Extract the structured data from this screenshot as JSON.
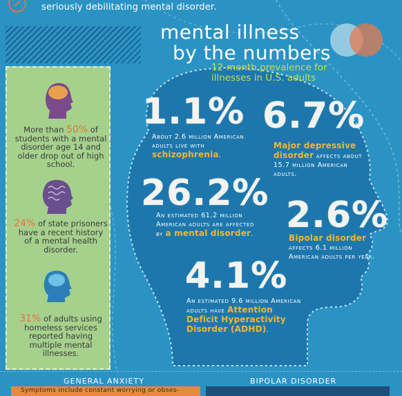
{
  "header": {
    "intro_text": "seriously debilitating mental disorder."
  },
  "title": {
    "line1": "mental illness",
    "line2": "by the numbers",
    "subtitle": "12-month prevalence for illnesses in U.S. adults"
  },
  "sidebar": {
    "facts": [
      {
        "pre": "More than ",
        "highlight": "50%",
        "post": " of students with a mental disorder age 14 and older drop out of high school."
      },
      {
        "pre": "",
        "highlight": "24%",
        "post": " of state prisoners have a recent history of a mental health disorder."
      },
      {
        "pre": "",
        "highlight": "31%",
        "post": " of adults using homeless services reported having multiple mental illnesses."
      }
    ]
  },
  "stats": {
    "schizophrenia": {
      "value": "1.1%",
      "pre": "About 2.6 million American adults live with ",
      "emph": "schizophrenia",
      "post": "."
    },
    "depression": {
      "value": "6.7%",
      "emph": "Major depressive disorder",
      "post": " affects about 15.7 million American adults."
    },
    "mental_disorder": {
      "value": "26.2%",
      "pre": "An estimated 61.2 million American adults are affected by ",
      "emph": "a mental disorder",
      "post": "."
    },
    "bipolar": {
      "value": "2.6%",
      "emph": "Bipolar disorder",
      "post": " affects 6.1 million American adults per year."
    },
    "adhd": {
      "value": "4.1%",
      "pre": "An estimated 9.6 million American adults have ",
      "emph": "Attention Deficit Hyperactivity Disorder (ADHD)",
      "post": "."
    }
  },
  "bottom": {
    "left_label": "GENERAL ANXIETY",
    "right_label": "BIPOLAR DISORDER",
    "left_snippet": "Symptoms include constant worrying or obses-"
  },
  "colors": {
    "background": "#2a93c4",
    "head": "#1d77ad",
    "panel": "#a6d18d",
    "accent_orange": "#e8703b",
    "accent_yellow": "#f2b632",
    "accent_green": "#c8df52"
  }
}
